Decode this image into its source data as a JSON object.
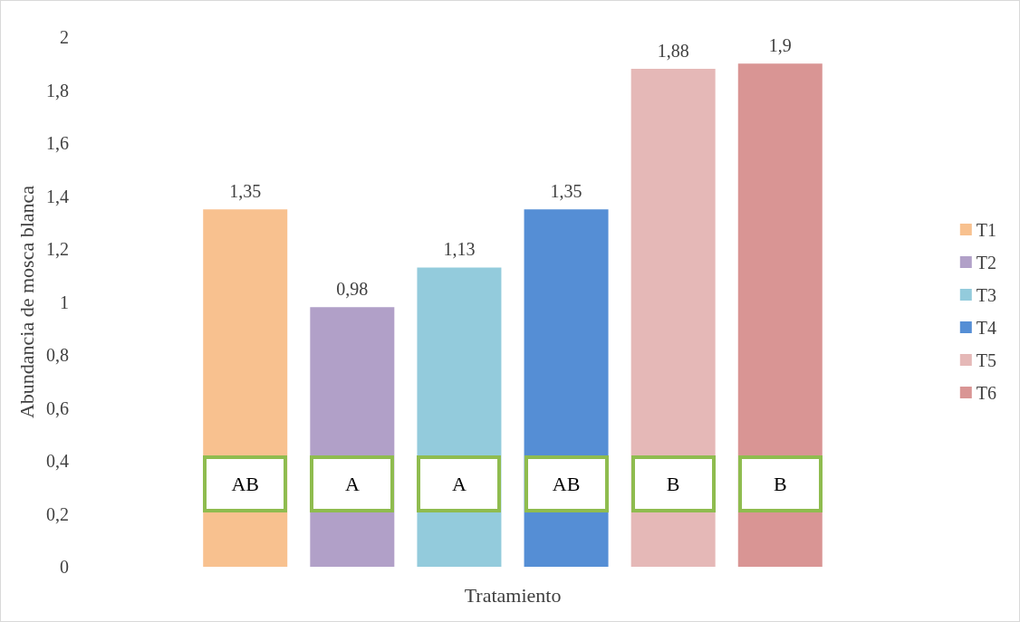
{
  "chart_data": {
    "type": "bar",
    "xlabel": "Tratamiento",
    "ylabel": "Abundancia de mosca blanca",
    "categories": [
      null
    ],
    "series": [
      {
        "name": "T1",
        "color": "#f8c18f",
        "values": [
          1.35
        ],
        "value_labels": [
          "1,35"
        ]
      },
      {
        "name": "T2",
        "color": "#b1a0c8",
        "values": [
          0.98
        ],
        "value_labels": [
          "0,98"
        ]
      },
      {
        "name": "T3",
        "color": "#93cbdc",
        "values": [
          1.13
        ],
        "value_labels": [
          "1,13"
        ]
      },
      {
        "name": "T4",
        "color": "#558ed5",
        "values": [
          1.35
        ],
        "value_labels": [
          "1,35"
        ]
      },
      {
        "name": "T5",
        "color": "#e5b8b7",
        "values": [
          1.88
        ],
        "value_labels": [
          "1,88"
        ]
      },
      {
        "name": "T6",
        "color": "#d99594",
        "values": [
          1.9
        ],
        "value_labels": [
          "1,9"
        ]
      }
    ],
    "annotations": [
      "AB",
      "A",
      "A",
      "AB",
      "B",
      "B"
    ],
    "ylim": [
      0,
      2
    ],
    "yticks": [
      0,
      {
        "value": 0.2,
        "label": "0,2"
      },
      {
        "value": 0.4,
        "label": "0,4"
      },
      {
        "value": 0.6,
        "label": "0,6"
      },
      {
        "value": 0.8,
        "label": "0,8"
      },
      1,
      {
        "value": 1.2,
        "label": "1,2"
      },
      {
        "value": 1.4,
        "label": "1,4"
      },
      {
        "value": 1.6,
        "label": "1,6"
      },
      {
        "value": 1.8,
        "label": "1,8"
      },
      2
    ],
    "grid": false,
    "legend": "right"
  }
}
